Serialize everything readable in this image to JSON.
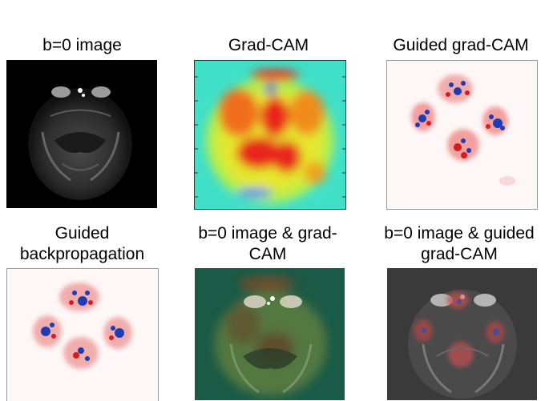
{
  "panels": [
    {
      "id": "p1",
      "title": "b=0 image"
    },
    {
      "id": "p2",
      "title": "Grad-CAM"
    },
    {
      "id": "p3",
      "title": "Guided grad-CAM"
    },
    {
      "id": "p4",
      "title": "Guided\nbackpropagation"
    },
    {
      "id": "p5",
      "title": "b=0 image & grad-\nCAM"
    },
    {
      "id": "p6",
      "title": "b=0 image & guided\ngrad-CAM"
    }
  ],
  "colors": {
    "background": "#ffffff",
    "jet_base": "#3ce6c8",
    "hot": "#e8281e",
    "cold": "#1e50c8",
    "mri_background": "#000000"
  }
}
